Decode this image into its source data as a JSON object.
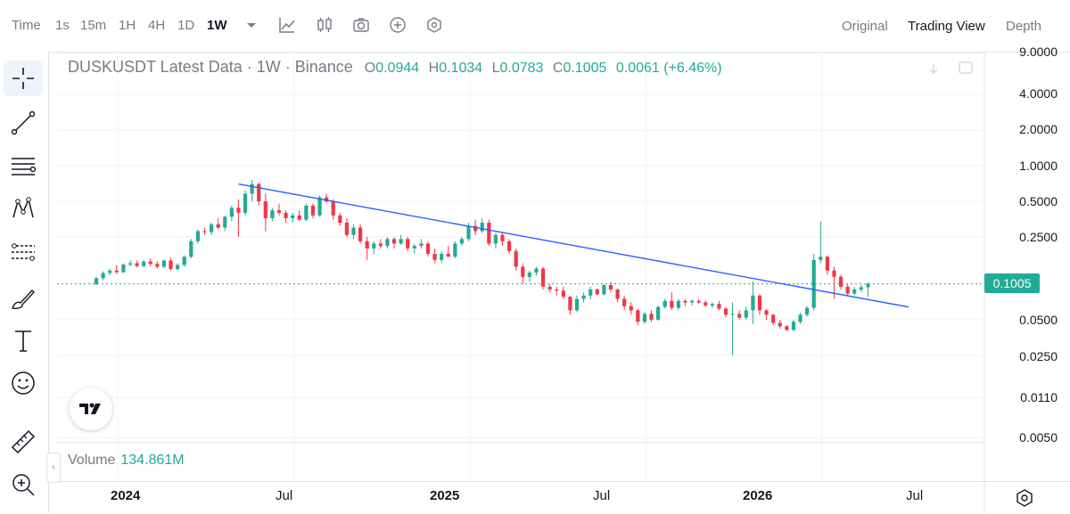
{
  "toolbar": {
    "items": [
      "Time",
      "1s",
      "15m",
      "1H",
      "4H",
      "1D",
      "1W"
    ],
    "active": "1W",
    "views": [
      "Original",
      "Trading View",
      "Depth"
    ],
    "active_view": "Trading View"
  },
  "legend": {
    "symbol": "DUSKUSDT Latest Data · 1W · Binance",
    "open_label": "O",
    "open": "0.0944",
    "high_label": "H",
    "high": "0.1034",
    "low_label": "L",
    "low": "0.0783",
    "close_label": "C",
    "close": "0.1005",
    "change": "0.0061 (+6.46%)"
  },
  "price_axis": {
    "labels": [
      "9.0000",
      "4.0000",
      "2.0000",
      "1.0000",
      "0.5000",
      "0.2500",
      "0.1005",
      "0.0500",
      "0.0250",
      "0.0110",
      "0.0050"
    ],
    "current": "0.1005"
  },
  "volume": {
    "label": "Volume",
    "value": "134.861M"
  },
  "time_axis": [
    "2024",
    "Jul",
    "2025",
    "Jul",
    "2026",
    "Jul"
  ],
  "colors": {
    "up": "#22ab94",
    "down": "#f23645",
    "trendline": "#2962ff",
    "accent": "#22ab94"
  },
  "chart_data": {
    "type": "candlestick",
    "title": "DUSKUSDT Latest Data · 1W · Binance",
    "scale": "log",
    "ylim": [
      0.005,
      9.0
    ],
    "y_ticks": [
      9.0,
      4.0,
      2.0,
      1.0,
      0.5,
      0.25,
      0.05,
      0.025,
      0.011,
      0.005
    ],
    "current_price": 0.1005,
    "x_ticks": [
      "2024",
      "Jul",
      "2025",
      "Jul",
      "2026",
      "Jul"
    ],
    "weeks_from_2024": [
      -9,
      128
    ],
    "candles": [
      [
        0.1,
        0.115,
        0.098,
        0.112
      ],
      [
        0.112,
        0.128,
        0.108,
        0.124
      ],
      [
        0.124,
        0.135,
        0.118,
        0.13
      ],
      [
        0.13,
        0.145,
        0.122,
        0.126
      ],
      [
        0.126,
        0.15,
        0.124,
        0.146
      ],
      [
        0.146,
        0.16,
        0.14,
        0.15
      ],
      [
        0.15,
        0.158,
        0.138,
        0.142
      ],
      [
        0.142,
        0.16,
        0.138,
        0.155
      ],
      [
        0.155,
        0.165,
        0.142,
        0.148
      ],
      [
        0.148,
        0.156,
        0.135,
        0.14
      ],
      [
        0.14,
        0.162,
        0.136,
        0.158
      ],
      [
        0.158,
        0.168,
        0.13,
        0.134
      ],
      [
        0.134,
        0.15,
        0.13,
        0.145
      ],
      [
        0.145,
        0.175,
        0.14,
        0.17
      ],
      [
        0.17,
        0.24,
        0.165,
        0.23
      ],
      [
        0.23,
        0.29,
        0.22,
        0.28
      ],
      [
        0.28,
        0.3,
        0.26,
        0.275
      ],
      [
        0.275,
        0.33,
        0.26,
        0.32
      ],
      [
        0.32,
        0.36,
        0.29,
        0.3
      ],
      [
        0.3,
        0.38,
        0.28,
        0.37
      ],
      [
        0.37,
        0.46,
        0.34,
        0.44
      ],
      [
        0.44,
        0.52,
        0.25,
        0.4
      ],
      [
        0.4,
        0.62,
        0.38,
        0.58
      ],
      [
        0.58,
        0.76,
        0.5,
        0.7
      ],
      [
        0.7,
        0.72,
        0.46,
        0.5
      ],
      [
        0.5,
        0.58,
        0.28,
        0.36
      ],
      [
        0.36,
        0.44,
        0.34,
        0.42
      ],
      [
        0.42,
        0.48,
        0.38,
        0.4
      ],
      [
        0.4,
        0.42,
        0.33,
        0.36
      ],
      [
        0.36,
        0.4,
        0.33,
        0.38
      ],
      [
        0.38,
        0.42,
        0.34,
        0.35
      ],
      [
        0.35,
        0.48,
        0.34,
        0.46
      ],
      [
        0.46,
        0.48,
        0.36,
        0.38
      ],
      [
        0.38,
        0.56,
        0.37,
        0.54
      ],
      [
        0.54,
        0.58,
        0.48,
        0.5
      ],
      [
        0.5,
        0.52,
        0.35,
        0.38
      ],
      [
        0.38,
        0.4,
        0.31,
        0.33
      ],
      [
        0.33,
        0.36,
        0.25,
        0.26
      ],
      [
        0.26,
        0.32,
        0.24,
        0.3
      ],
      [
        0.3,
        0.32,
        0.22,
        0.23
      ],
      [
        0.23,
        0.25,
        0.16,
        0.2
      ],
      [
        0.2,
        0.23,
        0.18,
        0.22
      ],
      [
        0.22,
        0.24,
        0.2,
        0.21
      ],
      [
        0.21,
        0.25,
        0.2,
        0.24
      ],
      [
        0.24,
        0.25,
        0.2,
        0.22
      ],
      [
        0.22,
        0.26,
        0.215,
        0.24
      ],
      [
        0.24,
        0.25,
        0.19,
        0.2
      ],
      [
        0.2,
        0.22,
        0.18,
        0.21
      ],
      [
        0.21,
        0.24,
        0.2,
        0.22
      ],
      [
        0.22,
        0.23,
        0.17,
        0.18
      ],
      [
        0.18,
        0.2,
        0.15,
        0.16
      ],
      [
        0.16,
        0.19,
        0.15,
        0.18
      ],
      [
        0.18,
        0.21,
        0.17,
        0.17
      ],
      [
        0.17,
        0.23,
        0.165,
        0.22
      ],
      [
        0.22,
        0.25,
        0.21,
        0.24
      ],
      [
        0.24,
        0.33,
        0.23,
        0.31
      ],
      [
        0.31,
        0.35,
        0.26,
        0.28
      ],
      [
        0.28,
        0.36,
        0.27,
        0.33
      ],
      [
        0.33,
        0.35,
        0.21,
        0.22
      ],
      [
        0.22,
        0.27,
        0.2,
        0.26
      ],
      [
        0.26,
        0.27,
        0.21,
        0.23
      ],
      [
        0.23,
        0.24,
        0.18,
        0.19
      ],
      [
        0.19,
        0.2,
        0.13,
        0.14
      ],
      [
        0.14,
        0.15,
        0.1,
        0.115
      ],
      [
        0.115,
        0.13,
        0.105,
        0.125
      ],
      [
        0.125,
        0.14,
        0.118,
        0.135
      ],
      [
        0.135,
        0.14,
        0.09,
        0.095
      ],
      [
        0.095,
        0.1,
        0.085,
        0.09
      ],
      [
        0.09,
        0.095,
        0.08,
        0.088
      ],
      [
        0.088,
        0.095,
        0.075,
        0.078
      ],
      [
        0.078,
        0.08,
        0.055,
        0.06
      ],
      [
        0.06,
        0.08,
        0.058,
        0.075
      ],
      [
        0.075,
        0.085,
        0.07,
        0.08
      ],
      [
        0.08,
        0.095,
        0.074,
        0.09
      ],
      [
        0.09,
        0.092,
        0.08,
        0.082
      ],
      [
        0.082,
        0.1,
        0.08,
        0.098
      ],
      [
        0.098,
        0.104,
        0.085,
        0.09
      ],
      [
        0.09,
        0.092,
        0.07,
        0.075
      ],
      [
        0.075,
        0.08,
        0.06,
        0.065
      ],
      [
        0.065,
        0.07,
        0.055,
        0.06
      ],
      [
        0.06,
        0.062,
        0.045,
        0.048
      ],
      [
        0.048,
        0.058,
        0.046,
        0.056
      ],
      [
        0.056,
        0.06,
        0.048,
        0.05
      ],
      [
        0.05,
        0.066,
        0.049,
        0.064
      ],
      [
        0.064,
        0.075,
        0.062,
        0.072
      ],
      [
        0.072,
        0.085,
        0.06,
        0.063
      ],
      [
        0.063,
        0.075,
        0.06,
        0.072
      ],
      [
        0.072,
        0.075,
        0.065,
        0.07
      ],
      [
        0.07,
        0.074,
        0.066,
        0.072
      ],
      [
        0.072,
        0.075,
        0.068,
        0.07
      ],
      [
        0.07,
        0.073,
        0.064,
        0.066
      ],
      [
        0.066,
        0.07,
        0.063,
        0.068
      ],
      [
        0.068,
        0.072,
        0.06,
        0.062
      ],
      [
        0.062,
        0.064,
        0.052,
        0.055
      ],
      [
        0.055,
        0.07,
        0.025,
        0.056
      ],
      [
        0.056,
        0.06,
        0.05,
        0.052
      ],
      [
        0.052,
        0.065,
        0.05,
        0.06
      ],
      [
        0.06,
        0.105,
        0.046,
        0.08
      ],
      [
        0.08,
        0.082,
        0.055,
        0.06
      ],
      [
        0.06,
        0.062,
        0.05,
        0.055
      ],
      [
        0.055,
        0.056,
        0.045,
        0.047
      ],
      [
        0.047,
        0.05,
        0.042,
        0.044
      ],
      [
        0.044,
        0.045,
        0.04,
        0.041
      ],
      [
        0.041,
        0.05,
        0.04,
        0.048
      ],
      [
        0.048,
        0.057,
        0.046,
        0.055
      ],
      [
        0.055,
        0.065,
        0.053,
        0.063
      ],
      [
        0.063,
        0.18,
        0.06,
        0.16
      ],
      [
        0.16,
        0.34,
        0.15,
        0.17
      ],
      [
        0.17,
        0.175,
        0.12,
        0.13
      ],
      [
        0.13,
        0.14,
        0.075,
        0.115
      ],
      [
        0.115,
        0.12,
        0.09,
        0.095
      ],
      [
        0.095,
        0.1,
        0.08,
        0.083
      ],
      [
        0.083,
        0.095,
        0.08,
        0.09
      ],
      [
        0.09,
        0.098,
        0.085,
        0.094
      ],
      [
        0.094,
        0.1034,
        0.0783,
        0.1005
      ]
    ],
    "trendline": {
      "from": [
        21,
        0.7
      ],
      "to": [
        120,
        0.064
      ]
    }
  }
}
